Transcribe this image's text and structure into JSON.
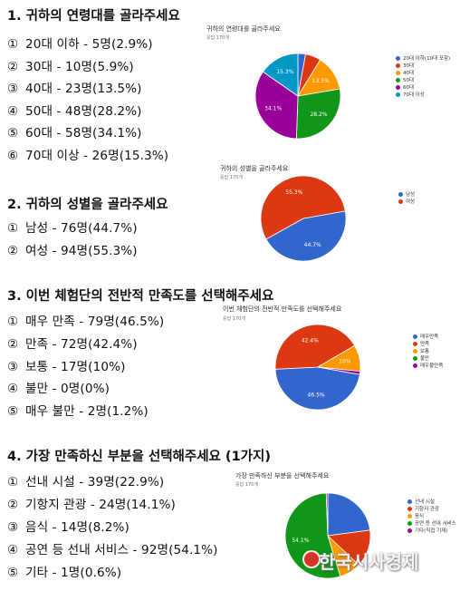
{
  "watermark": "한국시사경제",
  "sections": [
    {
      "title": "1. 귀하의 연령대를 골라주세요",
      "items": [
        {
          "mark": "①",
          "text": "20대 이하 - 5명(2.9%)"
        },
        {
          "mark": "②",
          "text": "30대 - 10명(5.9%)"
        },
        {
          "mark": "③",
          "text": "40대 - 23명(13.5%)"
        },
        {
          "mark": "④",
          "text": "50대 - 48명(28.2%)"
        },
        {
          "mark": "⑤",
          "text": "60대 - 58명(34.1%)"
        },
        {
          "mark": "⑥",
          "text": "70대 이상 - 26명(15.3%)"
        }
      ]
    },
    {
      "title": "2. 귀하의 성별을 골라주세요",
      "items": [
        {
          "mark": "①",
          "text": "남성 - 76명(44.7%)"
        },
        {
          "mark": "②",
          "text": "여성 - 94명(55.3%)"
        }
      ]
    },
    {
      "title": "3. 이번 체험단의 전반적 만족도를 선택해주세요",
      "items": [
        {
          "mark": "①",
          "text": "매우 만족 - 79명(46.5%)"
        },
        {
          "mark": "②",
          "text": "만족 - 72명(42.4%)"
        },
        {
          "mark": "③",
          "text": "보통 - 17명(10%)"
        },
        {
          "mark": "④",
          "text": "불만 - 0명(0%)"
        },
        {
          "mark": "⑤",
          "text": "매우 불만 - 2명(1.2%)"
        }
      ]
    },
    {
      "title": "4. 가장 만족하신 부분을 선택해주세요 (1가지)",
      "items": [
        {
          "mark": "①",
          "text": "선내 시설 - 39명(22.9%)"
        },
        {
          "mark": "②",
          "text": "기항지 관광 - 24명(14.1%)"
        },
        {
          "mark": "③",
          "text": "음식 - 14명(8.2%)"
        },
        {
          "mark": "④",
          "text": "공연 등 선내 서비스 - 92명(54.1%)"
        },
        {
          "mark": "⑤",
          "text": "기타 - 1명(0.6%)"
        }
      ]
    }
  ],
  "chart_data": [
    {
      "type": "pie",
      "title": "귀하의 연령대를 골라주세요",
      "subtitle": "응답 170개",
      "legend_position": "right",
      "start_angle_deg": 0,
      "slices": [
        {
          "label": "20대 이하(10대 포함)",
          "value": 2.9,
          "color": "#3366cc",
          "data_label": ""
        },
        {
          "label": "30대",
          "value": 5.9,
          "color": "#dc3912",
          "data_label": ""
        },
        {
          "label": "40대",
          "value": 13.5,
          "color": "#ff9900",
          "data_label": "13.5%"
        },
        {
          "label": "50대",
          "value": 28.2,
          "color": "#109618",
          "data_label": "28.2%"
        },
        {
          "label": "60대",
          "value": 34.1,
          "color": "#990099",
          "data_label": "34.1%"
        },
        {
          "label": "70대 이상",
          "value": 15.3,
          "color": "#0099c6",
          "data_label": "15.3%"
        }
      ]
    },
    {
      "type": "pie",
      "title": "귀하의 성별을 골라주세요",
      "subtitle": "응답 170개",
      "legend_position": "right",
      "start_angle_deg": 80,
      "slices": [
        {
          "label": "남성",
          "value": 44.7,
          "color": "#3366cc",
          "data_label": "44.7%"
        },
        {
          "label": "여성",
          "value": 55.3,
          "color": "#dc3912",
          "data_label": "55.3%"
        }
      ]
    },
    {
      "type": "pie",
      "title": "이번 체험단의 전반적 만족도를 선택해주세요",
      "subtitle": "응답 170개",
      "legend_position": "right",
      "start_angle_deg": 100,
      "slices": [
        {
          "label": "매우만족",
          "value": 46.5,
          "color": "#3366cc",
          "data_label": "46.5%"
        },
        {
          "label": "만족",
          "value": 42.4,
          "color": "#dc3912",
          "data_label": "42.4%"
        },
        {
          "label": "보통",
          "value": 10,
          "color": "#ff9900",
          "data_label": "10%"
        },
        {
          "label": "불만",
          "value": 0,
          "color": "#109618",
          "data_label": ""
        },
        {
          "label": "매우불만족",
          "value": 1.2,
          "color": "#990099",
          "data_label": ""
        }
      ]
    },
    {
      "type": "pie",
      "title": "가장 만족하신 부분을 선택해주세요",
      "subtitle": "응답 170개",
      "legend_position": "right",
      "start_angle_deg": 0,
      "slices": [
        {
          "label": "선내 시설",
          "value": 22.9,
          "color": "#3366cc",
          "data_label": ""
        },
        {
          "label": "기항지 관광",
          "value": 14.1,
          "color": "#dc3912",
          "data_label": ""
        },
        {
          "label": "음식",
          "value": 8.2,
          "color": "#ff9900",
          "data_label": ""
        },
        {
          "label": "공연 등 선내 서비스",
          "value": 54.1,
          "color": "#109618",
          "data_label": "54.1%"
        },
        {
          "label": "기타(직접 기재)",
          "value": 0.6,
          "color": "#990099",
          "data_label": ""
        }
      ]
    }
  ]
}
